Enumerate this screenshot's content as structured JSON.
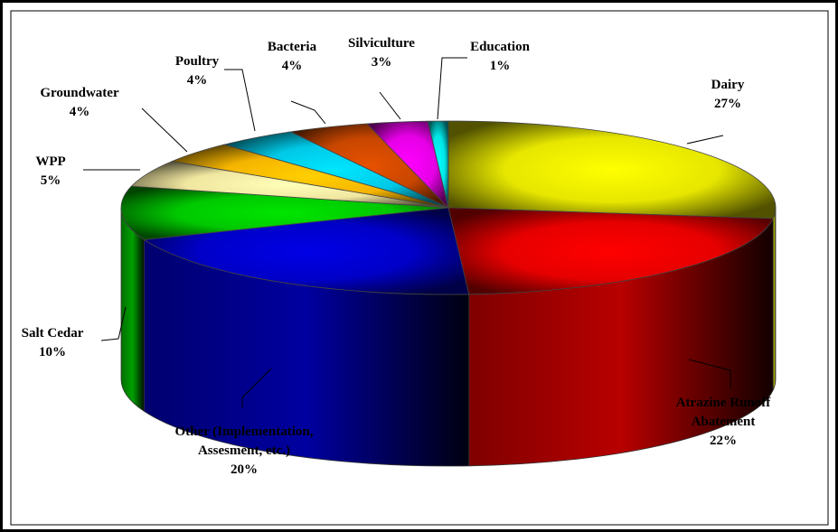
{
  "chart_data": {
    "type": "pie",
    "style": "3d-exploded-disc",
    "series": [
      {
        "values": [
          27,
          22,
          20,
          10,
          5,
          4,
          4,
          4,
          3,
          1
        ],
        "labels": [
          [
            "Dairy"
          ],
          [
            "Atrazine Runoff",
            "Abatement"
          ],
          [
            "Other (Implementation,",
            "Assesment, etc.)"
          ],
          [
            "Salt Cedar"
          ],
          [
            "WPP"
          ],
          [
            "Groundwater"
          ],
          [
            "Poultry"
          ],
          [
            "Bacteria"
          ],
          [
            "Silviculture"
          ],
          [
            "Education"
          ]
        ],
        "percent_labels": [
          "27%",
          "22%",
          "20%",
          "10%",
          "5%",
          "4%",
          "4%",
          "4%",
          "3%",
          "1%"
        ],
        "colors": [
          "#e6e600",
          "#e60000",
          "#0000c8",
          "#00c800",
          "#f0e6a0",
          "#f5b400",
          "#00c8e6",
          "#c84600",
          "#e600e6",
          "#00e6e6"
        ]
      }
    ],
    "legend": "none",
    "title": ""
  }
}
